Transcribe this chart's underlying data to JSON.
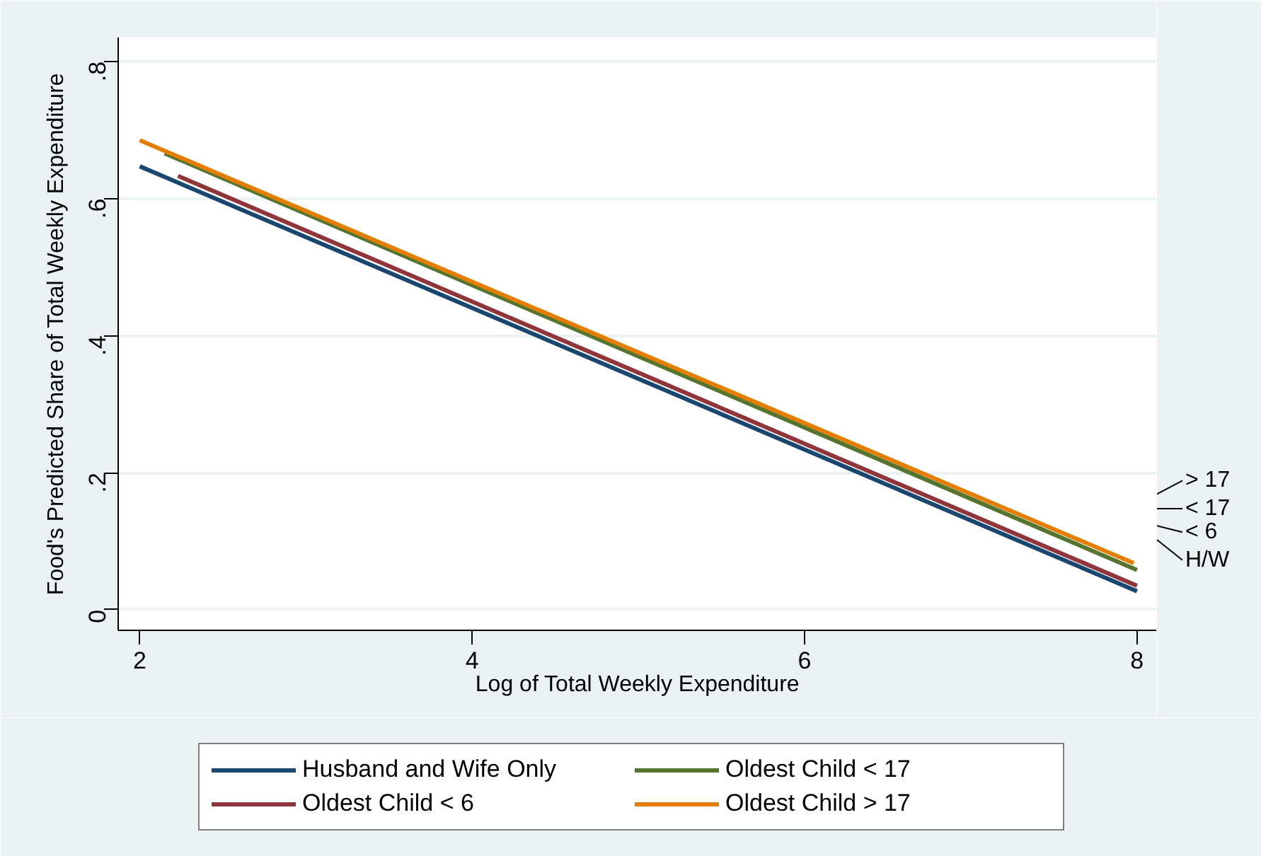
{
  "chart_data": {
    "type": "line",
    "xlabel": "Log of Total Weekly Expenditure",
    "ylabel": "Food's Predicted Share of Total Weekly Expenditure",
    "xlim": [
      1.87,
      8.12
    ],
    "ylim": [
      -0.03,
      0.835
    ],
    "xticks": [
      2,
      4,
      6,
      8
    ],
    "yticks": [
      {
        "value": 0,
        "label": "0"
      },
      {
        "value": 0.2,
        "label": ".2"
      },
      {
        "value": 0.4,
        "label": ".4"
      },
      {
        "value": 0.6,
        "label": ".6"
      },
      {
        "value": 0.8,
        "label": ".8"
      }
    ],
    "series": [
      {
        "name": "Husband and Wife Only",
        "color": "#1a476f",
        "x": [
          2,
          8
        ],
        "values": [
          0.647,
          0.027
        ]
      },
      {
        "name": "Oldest Child < 6",
        "color": "#90353b",
        "x": [
          2.23,
          8
        ],
        "values": [
          0.633,
          0.035
        ]
      },
      {
        "name": "Oldest Child < 17",
        "color": "#55752f",
        "x": [
          2.15,
          8
        ],
        "values": [
          0.666,
          0.058
        ]
      },
      {
        "name": "Oldest Child > 17",
        "color": "#e37e00",
        "x": [
          2,
          7.98
        ],
        "values": [
          0.685,
          0.068
        ]
      }
    ],
    "annotations": [
      "> 17",
      "< 17",
      "< 6",
      "H/W"
    ],
    "grid": "y",
    "legend": "bottom",
    "line_style": "solid",
    "marker": "none"
  }
}
